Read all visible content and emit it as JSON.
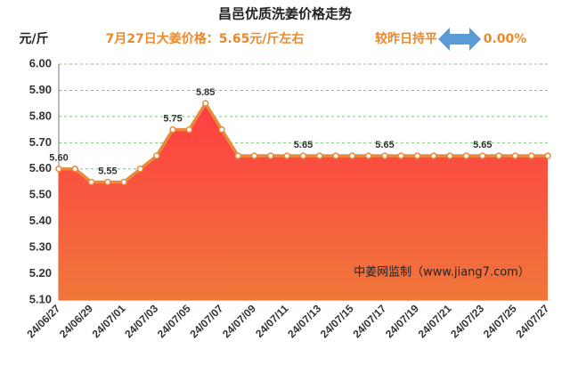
{
  "chart_data": {
    "type": "line",
    "title": "昌邑优质洗姜价格走势",
    "subtitle": "7月27日大姜价格：5.65元/斤左右",
    "change_text": "较昨日持平",
    "change_value": "0.00%",
    "y_label": "元/斤",
    "annotation": "中姜网监制（www.jiang7.com）",
    "categories": [
      "24/06/27",
      null,
      "24/06/29",
      null,
      "24/07/01",
      null,
      "24/07/03",
      null,
      "24/07/05",
      null,
      "24/07/07",
      null,
      "24/07/09",
      null,
      "24/07/11",
      null,
      "24/07/13",
      null,
      "24/07/15",
      null,
      "24/07/17",
      null,
      "24/07/19",
      null,
      "24/07/21",
      null,
      "24/07/23",
      null,
      "24/07/25",
      null,
      "24/07/27"
    ],
    "series": [
      {
        "color": "#e98a3c",
        "values": [
          5.6,
          5.6,
          5.55,
          5.55,
          5.55,
          5.6,
          5.65,
          5.75,
          5.75,
          5.85,
          5.75,
          5.65,
          5.65,
          5.65,
          5.65,
          5.65,
          5.65,
          5.65,
          5.65,
          5.65,
          5.65,
          5.65,
          5.65,
          5.65,
          5.65,
          5.65,
          5.65,
          5.65,
          5.65,
          5.65,
          5.65
        ],
        "value_labels": [
          "5.60",
          null,
          null,
          "5.55",
          null,
          null,
          null,
          "5.75",
          null,
          "5.85",
          null,
          null,
          null,
          null,
          null,
          "5.65",
          null,
          null,
          null,
          null,
          "5.65",
          null,
          null,
          null,
          null,
          null,
          "5.65",
          null,
          null,
          null,
          null
        ]
      }
    ],
    "ylim": [
      5.1,
      6.0
    ],
    "yticks": [
      {
        "value": 5.1,
        "label": "5.10"
      },
      {
        "value": 5.2,
        "label": "5.20"
      },
      {
        "value": 5.3,
        "label": "5.30"
      },
      {
        "value": 5.4,
        "label": "5.40"
      },
      {
        "value": 5.5,
        "label": "5.50"
      },
      {
        "value": 5.6,
        "label": "5.60"
      },
      {
        "value": 5.7,
        "label": "5.70"
      },
      {
        "value": 5.8,
        "label": "5.80"
      },
      {
        "value": 5.9,
        "label": "5.90"
      },
      {
        "value": 6.0,
        "label": "6.00"
      }
    ],
    "grid": true,
    "grid_color": "#7cc47c",
    "area_colors": [
      "#ff3d42",
      "#f0773a"
    ]
  }
}
